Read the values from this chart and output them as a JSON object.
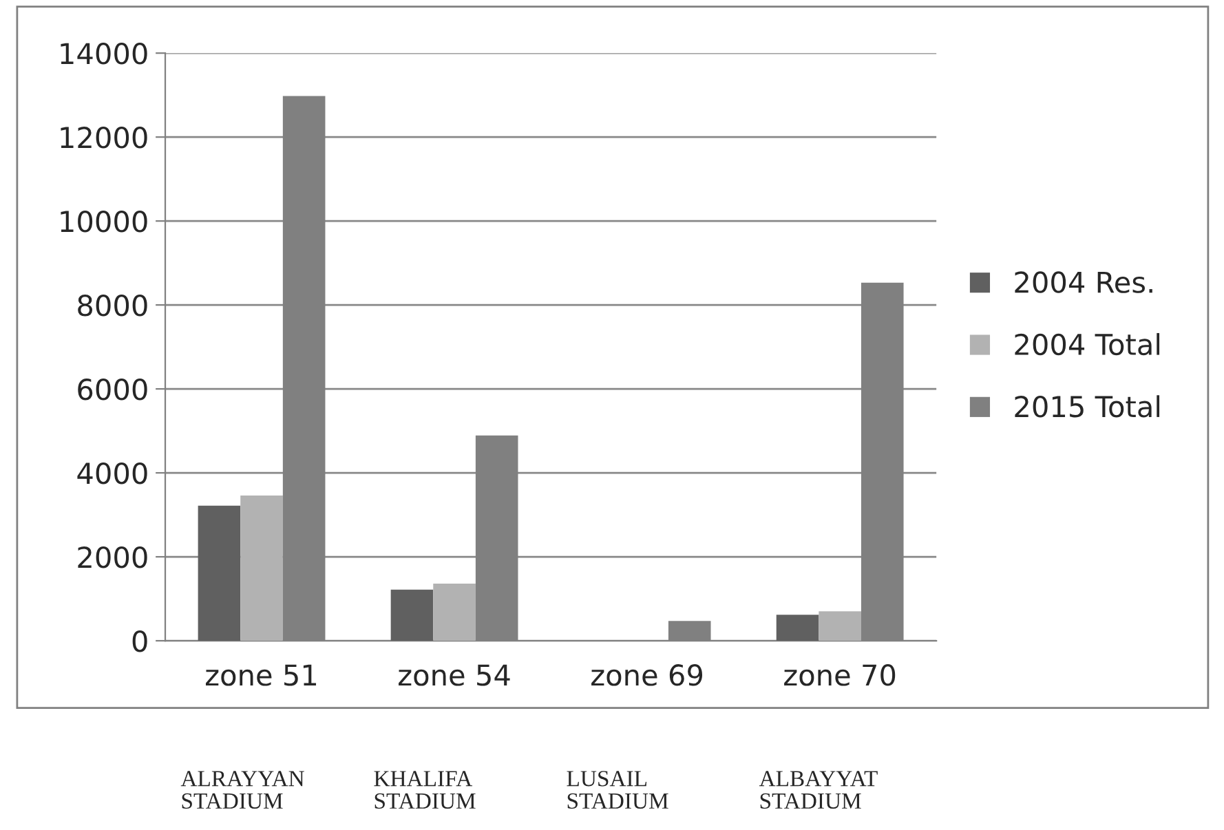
{
  "chart_data": {
    "type": "bar",
    "categories": [
      "zone 51",
      "zone 54",
      "zone 69",
      "zone 70"
    ],
    "series": [
      {
        "name": "2004 Res.",
        "color": "#606060",
        "values": [
          3220,
          1220,
          null,
          620
        ]
      },
      {
        "name": "2004 Total",
        "color": "#b2b2b2",
        "values": [
          3460,
          1360,
          null,
          700
        ]
      },
      {
        "name": "2015 Total",
        "color": "#808080",
        "values": [
          12980,
          4890,
          470,
          8530
        ]
      }
    ],
    "ylim": [
      0,
      14000
    ],
    "yticks": [
      0,
      2000,
      4000,
      6000,
      8000,
      10000,
      12000,
      14000
    ],
    "grid": "y",
    "legend": "right",
    "annotations": [
      "ALRAYYAN\nSTADIUM",
      "KHALIFA\nSTADIUM",
      "LUSAIL\nSTADIUM",
      "ALBAYYAT\nSTADIUM"
    ]
  }
}
